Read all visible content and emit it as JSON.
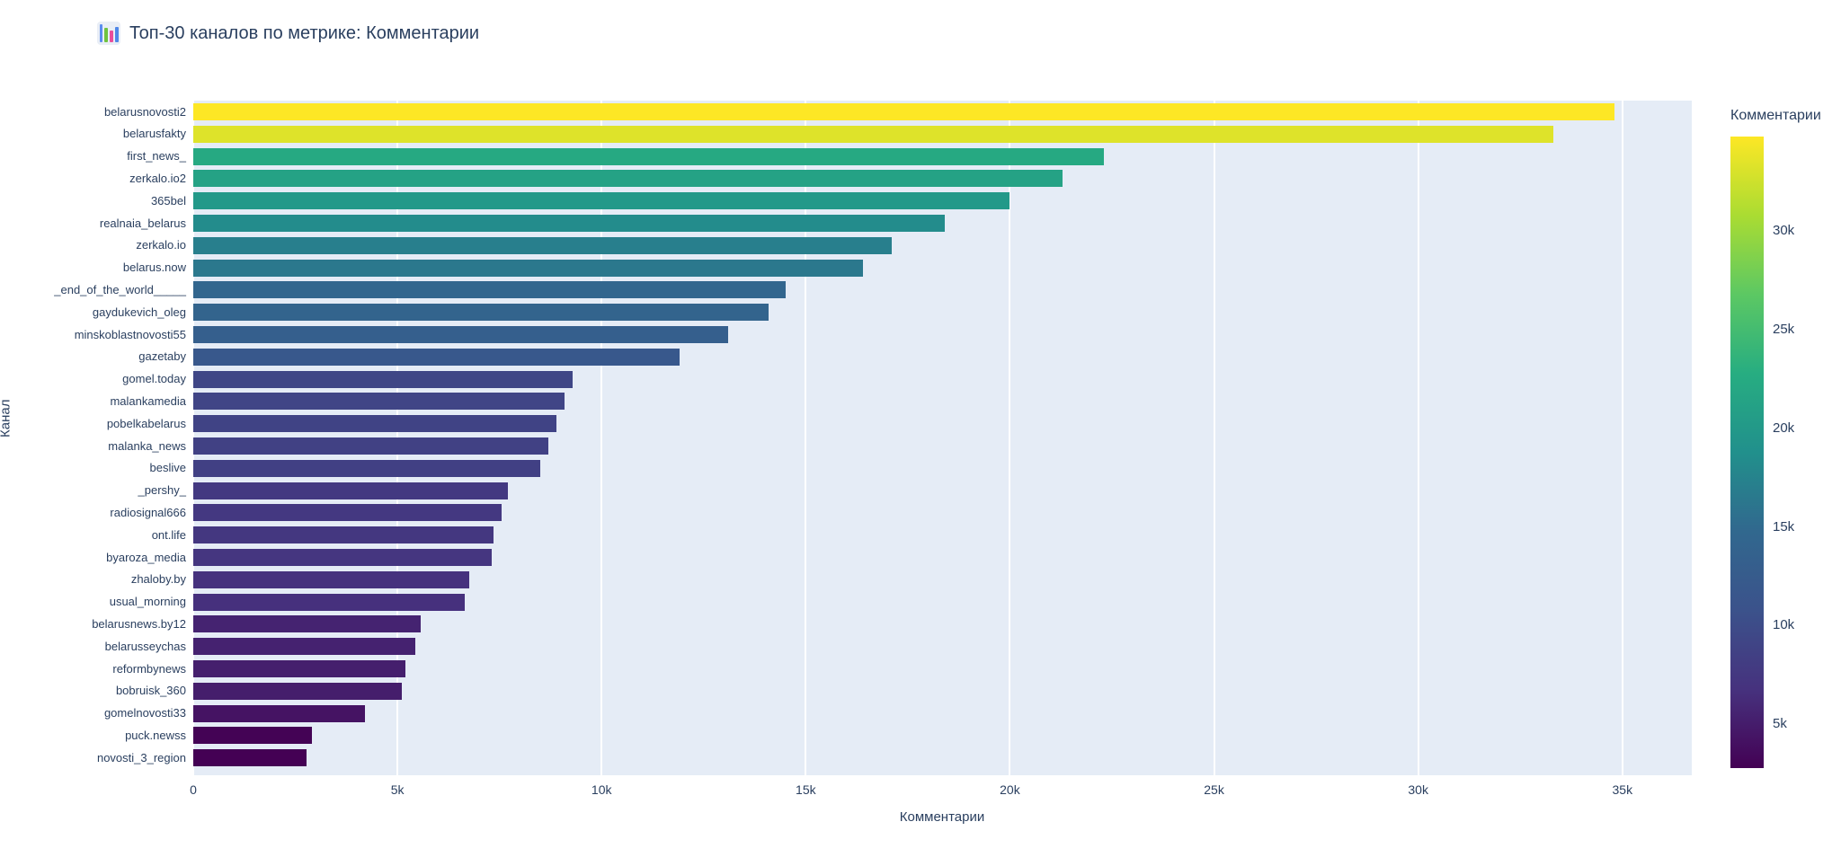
{
  "header": {
    "icon": "bar-chart-emoji",
    "title": "Топ-30 каналов по метрике: Комментарии"
  },
  "chart_data": {
    "type": "bar",
    "orientation": "horizontal",
    "title": "Топ-30 каналов по метрике: Комментарии",
    "xlabel": "Комментарии",
    "ylabel": "Канал",
    "categories": [
      "belarusnovosti2",
      "belarusfakty",
      "first_news_",
      "zerkalo.io2",
      "365bel",
      "realnaia_belarus",
      "zerkalo.io",
      "belarus.now",
      "_end_of_the_world_____",
      "gaydukevich_oleg",
      "minskoblastnovosti55",
      "gazetaby",
      "gomel.today",
      "malankamedia",
      "pobelkabelarus",
      "malanka_news",
      "beslive",
      "_pershy_",
      "radiosignal666",
      "ont.life",
      "byaroza_media",
      "zhaloby.by",
      "usual_morning",
      "belarusnews.by12",
      "belarusseychas",
      "reformbynews",
      "bobruisk_360",
      "gomelnovosti33",
      "puck.newss",
      "novosti_3_region"
    ],
    "values": [
      34800,
      33300,
      22300,
      21300,
      20000,
      18400,
      17100,
      16400,
      14500,
      14100,
      13100,
      11900,
      9300,
      9100,
      8900,
      8700,
      8500,
      7700,
      7550,
      7350,
      7300,
      6750,
      6650,
      5570,
      5440,
      5200,
      5100,
      4200,
      2900,
      2770
    ],
    "xlim": [
      0,
      36700
    ],
    "x_ticks": [
      "0",
      "5k",
      "10k",
      "15k",
      "20k",
      "25k",
      "30k",
      "35k"
    ],
    "x_tick_values": [
      0,
      5000,
      10000,
      15000,
      20000,
      25000,
      30000,
      35000
    ],
    "grid": true,
    "legend_position": "right-colorbar",
    "colorscale": "viridis",
    "colorbar": {
      "title": "Комментарии",
      "ticks": [
        "5k",
        "10k",
        "15k",
        "20k",
        "25k",
        "30k"
      ],
      "tick_values": [
        5000,
        10000,
        15000,
        20000,
        25000,
        30000
      ],
      "min": 2770,
      "max": 34800
    },
    "colors": {
      "plot_background": "#e5ecf6",
      "grid": "#ffffff",
      "font": "#2a3f5f",
      "viridis_min": "#440154",
      "viridis_max": "#fde725"
    }
  }
}
